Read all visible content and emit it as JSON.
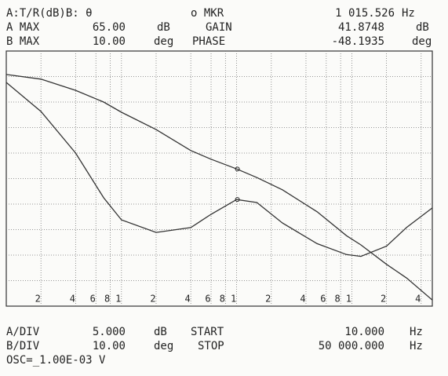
{
  "chart_data": {
    "type": "line",
    "header": {
      "trace_mode": "A:T/R(dB)B: θ",
      "marker_label": "o MKR",
      "marker_unit": "Hz",
      "a_max_label": "A MAX",
      "a_max": "65.00",
      "a_unit": "dB",
      "gain_unit": "dB",
      "b_max_label": "B MAX",
      "b_max": "10.00",
      "b_unit": "deg",
      "phase_unit": "deg"
    },
    "footer": {
      "a_div_label": "A/DIV",
      "a_div": "5.000",
      "a_div_unit": "dB",
      "start_label": "START",
      "start": "10.000",
      "start_unit": "Hz",
      "b_div_label": "B/DIV",
      "b_div": "10.00",
      "b_div_unit": "deg",
      "stop_label": "STOP",
      "stop": "50 000.000",
      "stop_unit": "Hz",
      "osc": "OSC=_1.00E-03 V"
    },
    "marker": {
      "x": {
        "value": 1015.526,
        "label": "1 015.526"
      },
      "gain": 41.8748,
      "phase": -48.1935
    },
    "x_log": true,
    "x": [
      10,
      20,
      40,
      70,
      100,
      200,
      400,
      600,
      1000,
      1500,
      2500,
      5000,
      9000,
      12000,
      20000,
      30000,
      50000
    ],
    "series": [
      {
        "name": "GAIN",
        "color": "#333333",
        "values": [
          60.4,
          59.5,
          57.3,
          55.0,
          53.0,
          49.6,
          45.5,
          43.8,
          41.9,
          40.2,
          37.8,
          33.5,
          28.8,
          27.0,
          23.2,
          20.5,
          16.2
        ]
      },
      {
        "name": "PHASE",
        "color": "#333333",
        "axis": "y2",
        "values": [
          -2.3,
          -13.7,
          -30,
          -47.5,
          -56.2,
          -61.1,
          -59.2,
          -54,
          -48.2,
          -49.4,
          -57.4,
          -65.5,
          -69.8,
          -70.5,
          -66.5,
          -59.1,
          -51.5
        ]
      }
    ],
    "xlim": [
      10,
      50000
    ],
    "ylim": [
      15,
      65
    ],
    "y2lim": [
      -90,
      10
    ],
    "xticks": [
      {
        "value": 20,
        "label": "2"
      },
      {
        "value": 40,
        "label": "4"
      },
      {
        "value": 60,
        "label": "6"
      },
      {
        "value": 80,
        "label": "8"
      },
      {
        "value": 100,
        "label": "1"
      },
      {
        "value": 200,
        "label": "2"
      },
      {
        "value": 400,
        "label": "4"
      },
      {
        "value": 600,
        "label": "6"
      },
      {
        "value": 800,
        "label": "8"
      },
      {
        "value": 1000,
        "label": "1"
      },
      {
        "value": 2000,
        "label": "2"
      },
      {
        "value": 4000,
        "label": "4"
      },
      {
        "value": 6000,
        "label": "6"
      },
      {
        "value": 8000,
        "label": "8"
      },
      {
        "value": 10000,
        "label": "1"
      },
      {
        "value": 20000,
        "label": "2"
      },
      {
        "value": 40000,
        "label": "4"
      }
    ],
    "grid": true
  }
}
